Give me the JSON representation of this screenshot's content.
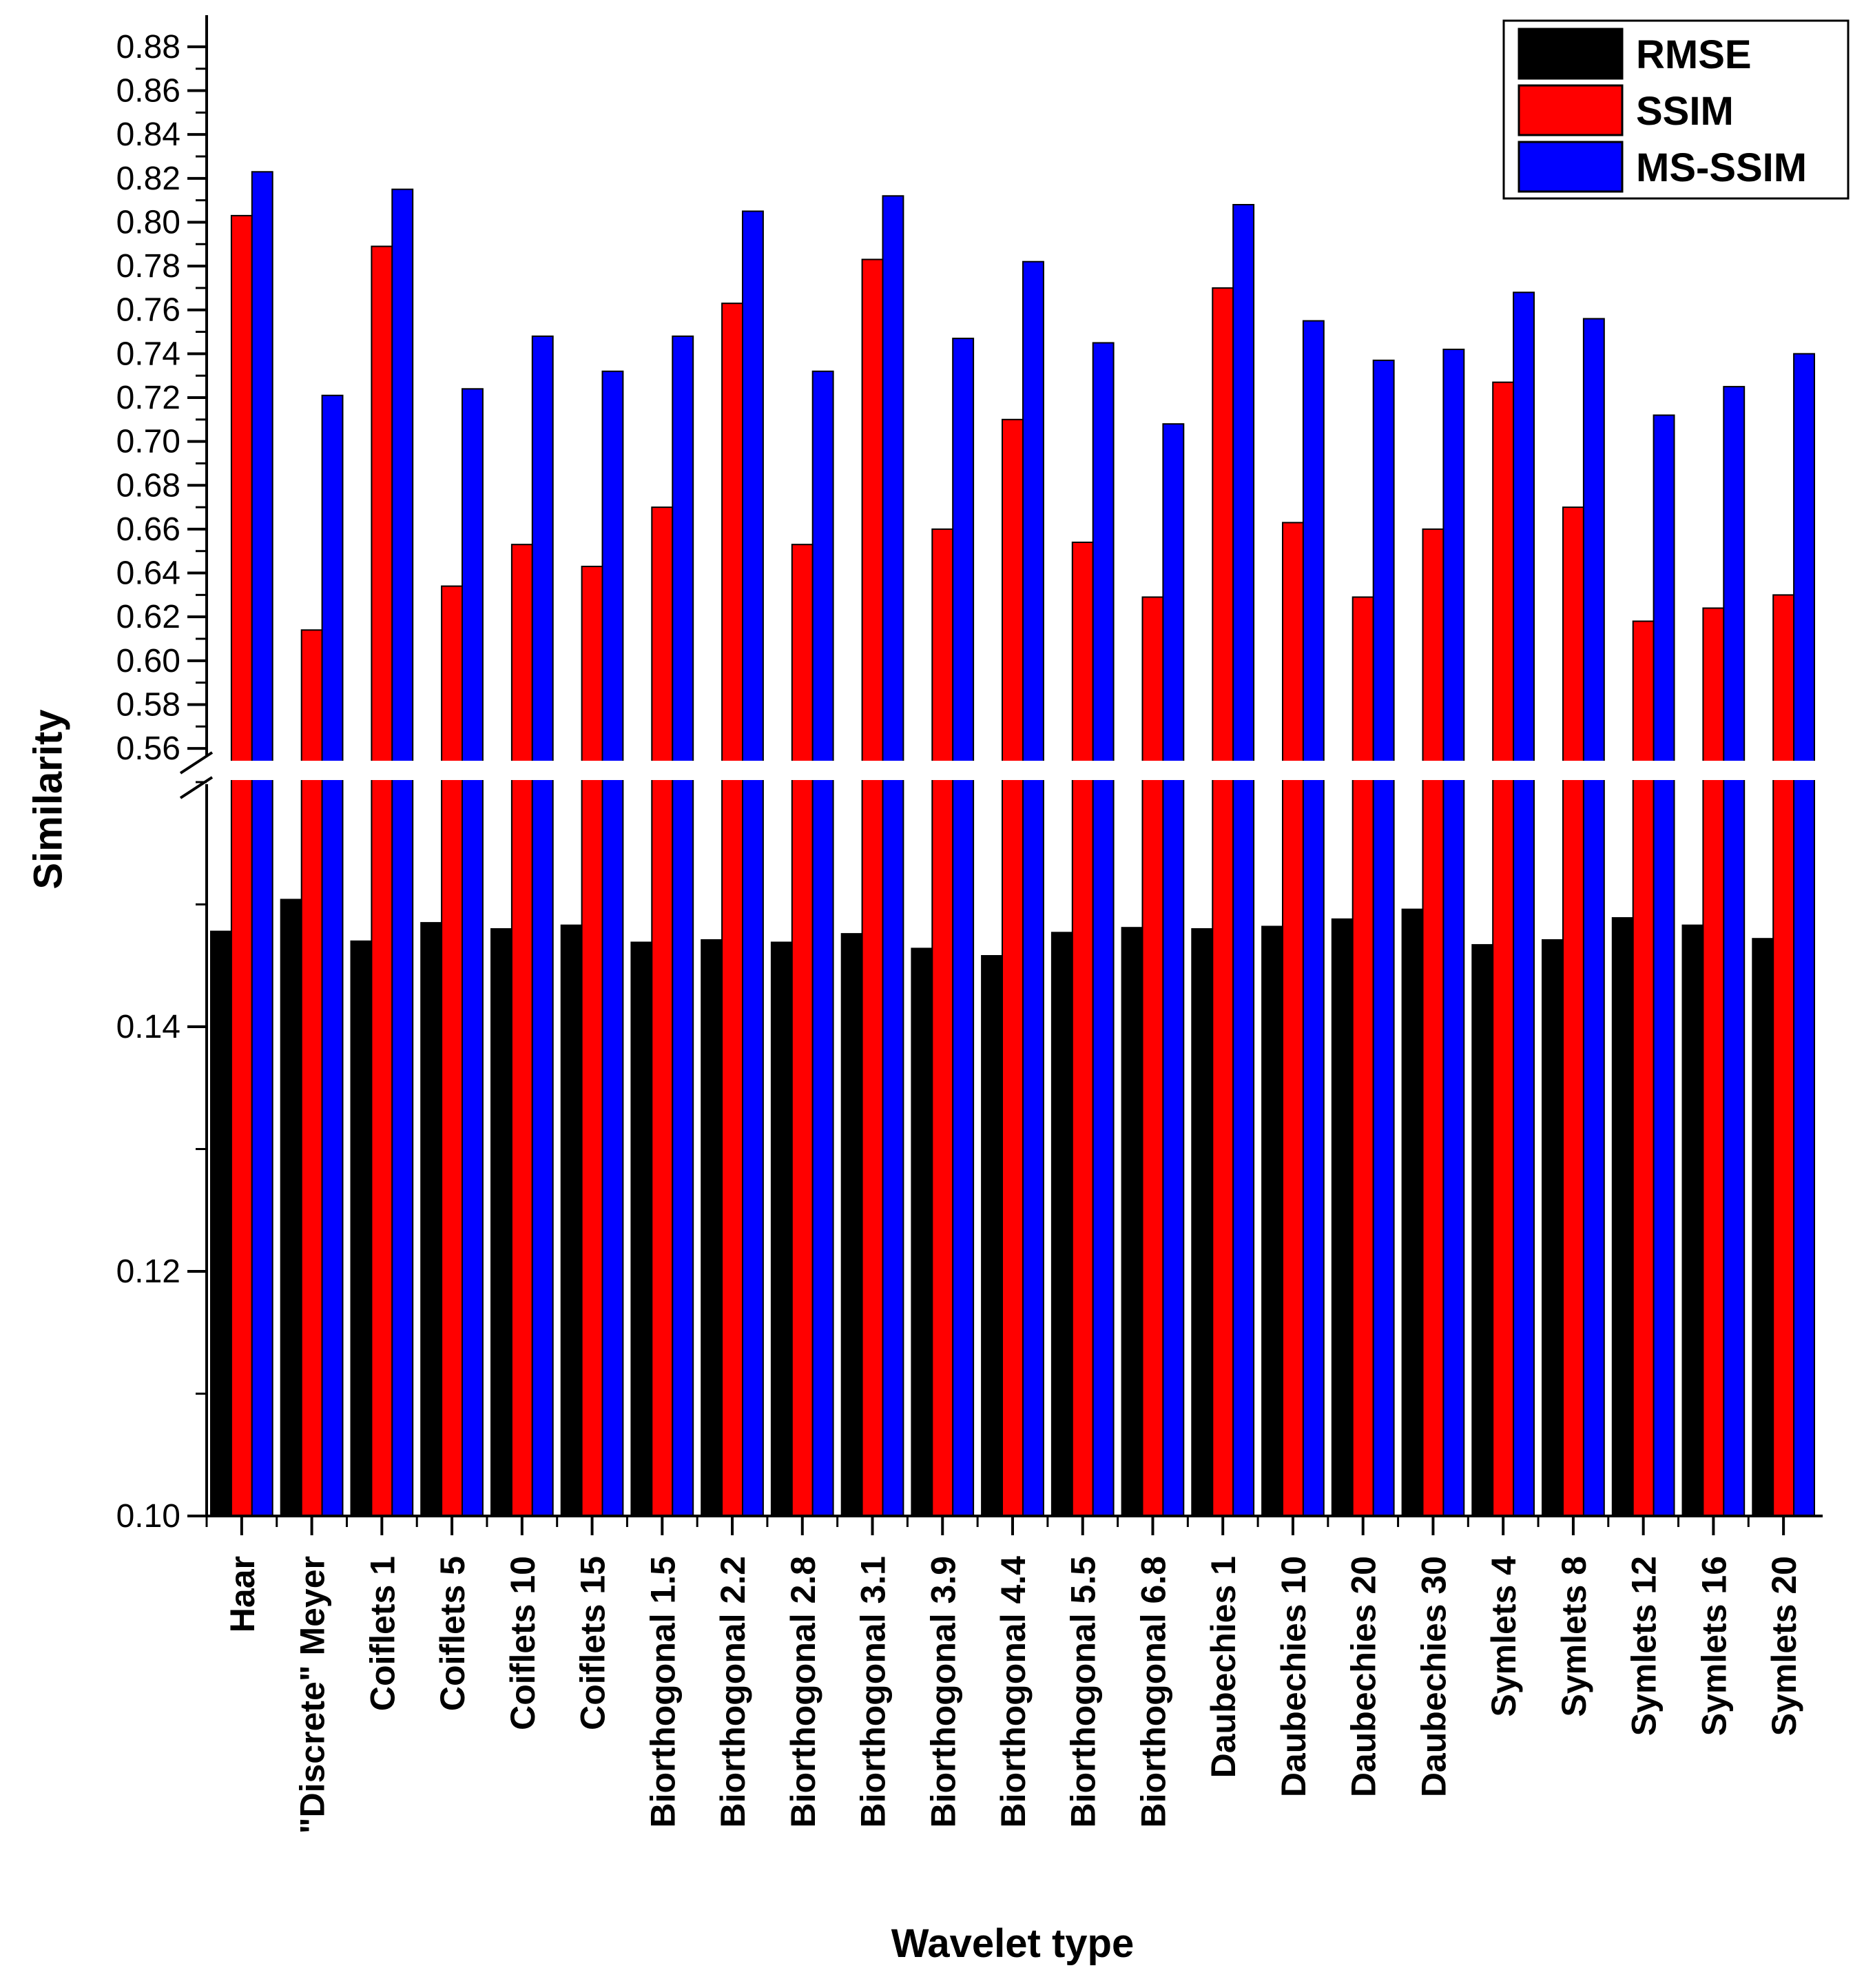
{
  "chart_data": {
    "type": "bar",
    "title": "",
    "xlabel": "Wavelet type",
    "ylabel": "Similarity",
    "axis_break": true,
    "ylim_lower": [
      0.1,
      0.16
    ],
    "ylim_upper": [
      0.555,
      0.885
    ],
    "lower_ticks": [
      "0.10",
      "0.12",
      "0.14"
    ],
    "upper_ticks": [
      "0.56",
      "0.58",
      "0.60",
      "0.62",
      "0.64",
      "0.66",
      "0.68",
      "0.70",
      "0.72",
      "0.74",
      "0.76",
      "0.78",
      "0.80",
      "0.82",
      "0.84",
      "0.86",
      "0.88"
    ],
    "legend_position": "top-right",
    "categories": [
      "Haar",
      "\"Discrete\" Meyer",
      "Coiflets 1",
      "Coiflets 5",
      "Coiflets 10",
      "Coiflets 15",
      "Biorthogonal 1.5",
      "Biorthogonal 2.2",
      "Biorthogonal 2.8",
      "Biorthogonal 3.1",
      "Biorthogonal 3.9",
      "Biorthogonal 4.4",
      "Biorthogonal 5.5",
      "Biorthogonal 6.8",
      "Daubechies 1",
      "Daubechies 10",
      "Daubechies 20",
      "Daubechies 30",
      "Symlets 4",
      "Symlets 8",
      "Symlets 12",
      "Symlets 16",
      "Symlets 20"
    ],
    "series": [
      {
        "name": "RMSE",
        "color": "#000000",
        "values": [
          0.1478,
          0.1504,
          0.147,
          0.1485,
          0.148,
          0.1483,
          0.1469,
          0.1471,
          0.1469,
          0.1476,
          0.1464,
          0.1458,
          0.1477,
          0.1481,
          0.148,
          0.1482,
          0.1488,
          0.1496,
          0.1467,
          0.1471,
          0.1489,
          0.1483,
          0.1472
        ]
      },
      {
        "name": "SSIM",
        "color": "#ff0000",
        "values": [
          0.803,
          0.614,
          0.789,
          0.634,
          0.653,
          0.643,
          0.67,
          0.763,
          0.653,
          0.783,
          0.66,
          0.71,
          0.654,
          0.629,
          0.77,
          0.663,
          0.629,
          0.66,
          0.727,
          0.67,
          0.618,
          0.624,
          0.63
        ]
      },
      {
        "name": "MS-SSIM",
        "color": "#0000ff",
        "values": [
          0.823,
          0.721,
          0.815,
          0.724,
          0.748,
          0.732,
          0.748,
          0.805,
          0.732,
          0.812,
          0.747,
          0.782,
          0.745,
          0.708,
          0.808,
          0.755,
          0.737,
          0.742,
          0.768,
          0.756,
          0.712,
          0.725,
          0.74
        ]
      }
    ]
  }
}
